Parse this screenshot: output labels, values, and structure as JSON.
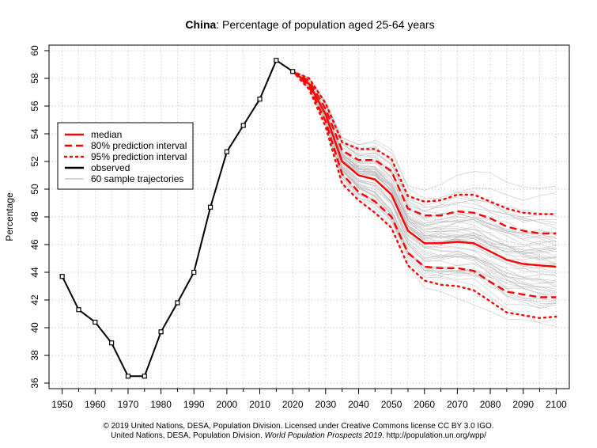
{
  "chart_data": {
    "type": "line",
    "title_bold": "China",
    "title_rest": ": Percentage of population aged 25-64 years",
    "xlabel": "",
    "ylabel": "Percentage",
    "xlim": [
      1946,
      2104
    ],
    "ylim": [
      35.6,
      60.4
    ],
    "xticks": [
      1950,
      1960,
      1970,
      1980,
      1990,
      2000,
      2010,
      2020,
      2030,
      2040,
      2050,
      2060,
      2070,
      2080,
      2090,
      2100
    ],
    "xminor": [
      1955,
      1965,
      1975,
      1985,
      1995,
      2005,
      2015,
      2025,
      2035,
      2045,
      2055,
      2065,
      2075,
      2085,
      2095
    ],
    "yticks": [
      36,
      38,
      40,
      42,
      44,
      46,
      48,
      50,
      52,
      54,
      56,
      58,
      60
    ],
    "grid": true,
    "legend_position": "top-left",
    "observed": {
      "x": [
        1950,
        1955,
        1960,
        1965,
        1970,
        1975,
        1980,
        1985,
        1990,
        1995,
        2000,
        2005,
        2010,
        2015,
        2020
      ],
      "y": [
        43.7,
        41.3,
        40.4,
        38.9,
        36.5,
        36.5,
        39.7,
        41.8,
        44.0,
        48.7,
        52.7,
        54.6,
        56.5,
        59.3,
        58.5
      ]
    },
    "median": {
      "x": [
        2020,
        2025,
        2030,
        2035,
        2040,
        2045,
        2050,
        2055,
        2060,
        2065,
        2070,
        2075,
        2080,
        2085,
        2090,
        2095,
        2100
      ],
      "y": [
        58.5,
        57.6,
        55.4,
        52.0,
        51.0,
        50.7,
        49.6,
        47.0,
        46.1,
        46.1,
        46.2,
        46.1,
        45.5,
        44.9,
        44.6,
        44.5,
        44.4
      ]
    },
    "pi80_upper": {
      "x": [
        2020,
        2025,
        2030,
        2035,
        2040,
        2045,
        2050,
        2055,
        2060,
        2065,
        2070,
        2075,
        2080,
        2085,
        2090,
        2095,
        2100
      ],
      "y": [
        58.5,
        57.8,
        55.8,
        52.8,
        52.1,
        52.1,
        51.3,
        48.6,
        48.1,
        48.1,
        48.4,
        48.3,
        47.9,
        47.3,
        47.0,
        46.8,
        46.8
      ]
    },
    "pi80_lower": {
      "x": [
        2020,
        2025,
        2030,
        2035,
        2040,
        2045,
        2050,
        2055,
        2060,
        2065,
        2070,
        2075,
        2080,
        2085,
        2090,
        2095,
        2100
      ],
      "y": [
        58.5,
        57.4,
        54.9,
        51.1,
        49.8,
        49.1,
        48.0,
        45.4,
        44.4,
        44.3,
        44.3,
        44.1,
        43.3,
        42.6,
        42.4,
        42.2,
        42.2
      ]
    },
    "pi95_upper": {
      "x": [
        2020,
        2025,
        2030,
        2035,
        2040,
        2045,
        2050,
        2055,
        2060,
        2065,
        2070,
        2075,
        2080,
        2085,
        2090,
        2095,
        2100
      ],
      "y": [
        58.5,
        58.0,
        56.2,
        53.4,
        52.9,
        52.9,
        52.2,
        49.5,
        49.1,
        49.2,
        49.6,
        49.6,
        49.1,
        48.6,
        48.3,
        48.2,
        48.2
      ]
    },
    "pi95_lower": {
      "x": [
        2020,
        2025,
        2030,
        2035,
        2040,
        2045,
        2050,
        2055,
        2060,
        2065,
        2070,
        2075,
        2080,
        2085,
        2090,
        2095,
        2100
      ],
      "y": [
        58.5,
        57.2,
        54.5,
        50.4,
        49.2,
        48.3,
        47.2,
        44.5,
        43.4,
        43.1,
        43.0,
        42.7,
        41.9,
        41.1,
        40.9,
        40.7,
        40.8
      ]
    },
    "legend": [
      {
        "label": "median",
        "color": "#ff0000",
        "style": "solid"
      },
      {
        "label": "80% prediction interval",
        "color": "#ff0000",
        "style": "dashed"
      },
      {
        "label": "95% prediction interval",
        "color": "#ff0000",
        "style": "dotted"
      },
      {
        "label": "observed",
        "color": "#000000",
        "style": "solid"
      },
      {
        "label": "60 sample trajectories",
        "color": "#bebebe",
        "style": "solid"
      }
    ],
    "sample_trajectories": {
      "count": 60,
      "color": "#bebebe"
    },
    "colors": {
      "median": "#ff0000",
      "observed": "#000000",
      "trajectories": "#bebebe",
      "grid": "#bebebe"
    }
  },
  "footer": {
    "line1": "© 2019 United Nations, DESA, Population Division. Licensed under Creative Commons license CC BY 3.0 IGO.",
    "line2_prefix": "United Nations, DESA, Population Division. ",
    "line2_italic": "World Population Prospects 2019",
    "line2_suffix": ". http://population.un.org/wpp/"
  }
}
